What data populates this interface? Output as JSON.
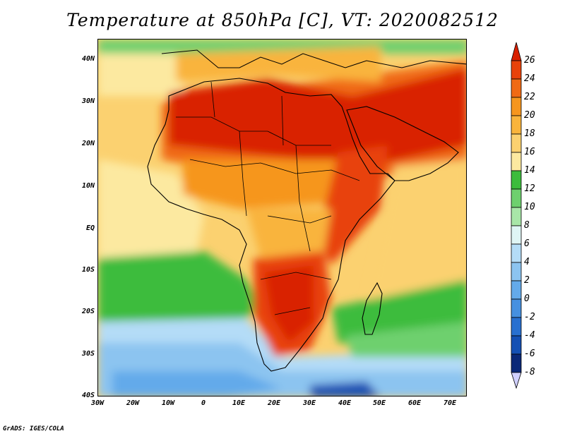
{
  "title": "Temperature at 850hPa [C], VT: 2020082512",
  "credit": "GrADS: IGES/COLA",
  "map": {
    "lat_labels": [
      "40N",
      "30N",
      "20N",
      "10N",
      "EQ",
      "10S",
      "20S",
      "30S",
      "40S"
    ],
    "lon_labels": [
      "30W",
      "20W",
      "10W",
      "0",
      "10E",
      "20E",
      "30E",
      "40E",
      "50E",
      "60E",
      "70E"
    ]
  },
  "colorbar": {
    "levels": [
      "26",
      "24",
      "22",
      "20",
      "18",
      "16",
      "14",
      "12",
      "10",
      "8",
      "6",
      "4",
      "2",
      "0",
      "-2",
      "-4",
      "-6",
      "-8"
    ],
    "colors": [
      "#d92000",
      "#e8420a",
      "#f06a14",
      "#f6961e",
      "#f9b43c",
      "#fbd170",
      "#fce9a0",
      "#3cbc3c",
      "#6ed06e",
      "#a8e6a8",
      "#dff5f5",
      "#b4dcf7",
      "#8cc4f0",
      "#64aaea",
      "#4690e0",
      "#2870d0",
      "#1450b4",
      "#0a2878"
    ],
    "cap_high": "#d92000",
    "cap_low": "#d0d0ff"
  }
}
